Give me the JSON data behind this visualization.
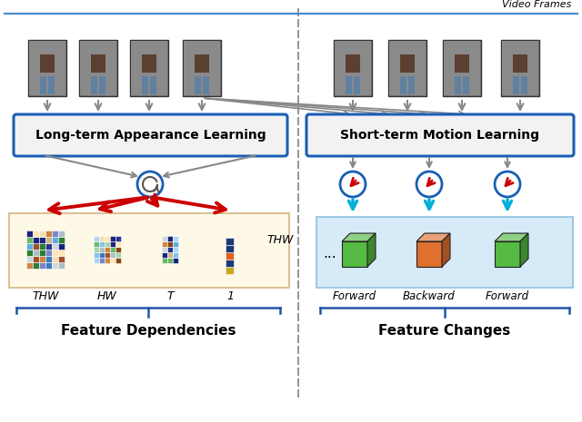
{
  "fig_width": 6.4,
  "fig_height": 4.65,
  "bg_color": "#ffffff",
  "title_text": "Video Frames",
  "left_box_text": "Long-term Appearance Learning",
  "right_box_text": "Short-term Motion Learning",
  "left_bottom_text": "Feature Dependencies",
  "right_bottom_text": "Feature Changes",
  "matrix_labels": [
    "THW",
    "HW",
    "T",
    "1"
  ],
  "flow_labels": [
    "Forward",
    "Backward",
    "Forward"
  ],
  "thw_label": "THW",
  "divider_color": "#999999",
  "box_edge_color": "#1a5fb4",
  "box_fill_color": "#f2f2f2",
  "arrow_gray": "#888888",
  "arrow_red": "#cc0000",
  "arrow_cyan": "#00b0d8",
  "brace_color": "#2255aa",
  "matrix_bg": "#fef9e7",
  "flow_bg": "#d6eaf8",
  "top_line_color": "#4488cc",
  "green_cube": "#55bb44",
  "orange_cube": "#e07030"
}
